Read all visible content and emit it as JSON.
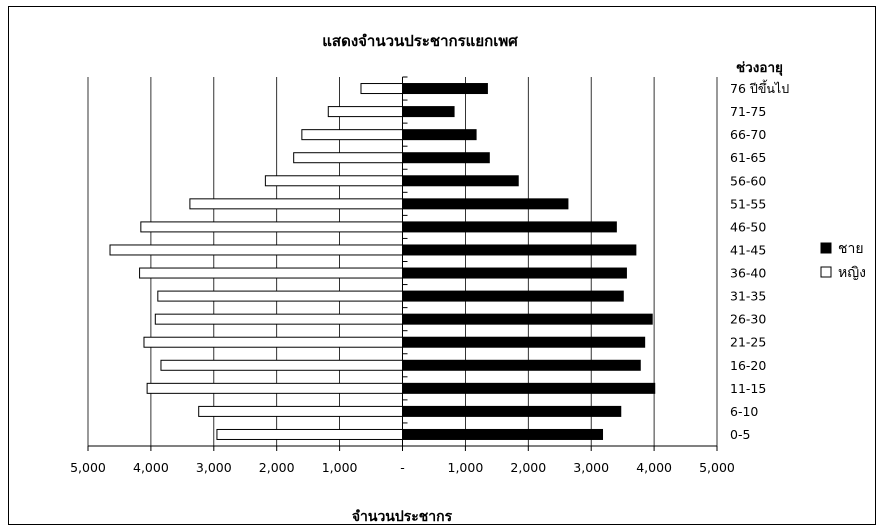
{
  "chart_data": {
    "type": "bar",
    "orientation": "horizontal",
    "title": "แสดงจำนวนประชากรแยกเพศ",
    "xlabel": "จำนวนประชากร",
    "category_axis_title": "ช่วงอายุ",
    "categories": [
      "0-5",
      "6-10",
      "11-15",
      "16-20",
      "21-25",
      "26-30",
      "31-35",
      "36-40",
      "41-45",
      "46-50",
      "51-55",
      "56-60",
      "61-65",
      "66-70",
      "71-75",
      "76 ปีขึ้นไป"
    ],
    "xlim": [
      -5000,
      5000
    ],
    "x_ticks": [
      "5,000",
      "4,000",
      "3,000",
      "2,000",
      "1,000",
      "-",
      "1,000",
      "2,000",
      "3,000",
      "4,000",
      "5,000"
    ],
    "grid": "vertical major gridlines",
    "legend_position": "right",
    "series": [
      {
        "name": "ชาย",
        "color": "#000000",
        "side": "right",
        "values": [
          3180,
          3470,
          4010,
          3780,
          3850,
          3970,
          3510,
          3560,
          3710,
          3400,
          2630,
          1840,
          1380,
          1170,
          820,
          1350
        ]
      },
      {
        "name": "หญิง",
        "color": "#ffffff",
        "side": "left",
        "values": [
          2950,
          3240,
          4060,
          3840,
          4110,
          3930,
          3890,
          4180,
          4650,
          4160,
          3380,
          2180,
          1730,
          1600,
          1180,
          660
        ]
      }
    ]
  },
  "legend": {
    "male_label": "ชาย",
    "female_label": "หญิง"
  }
}
